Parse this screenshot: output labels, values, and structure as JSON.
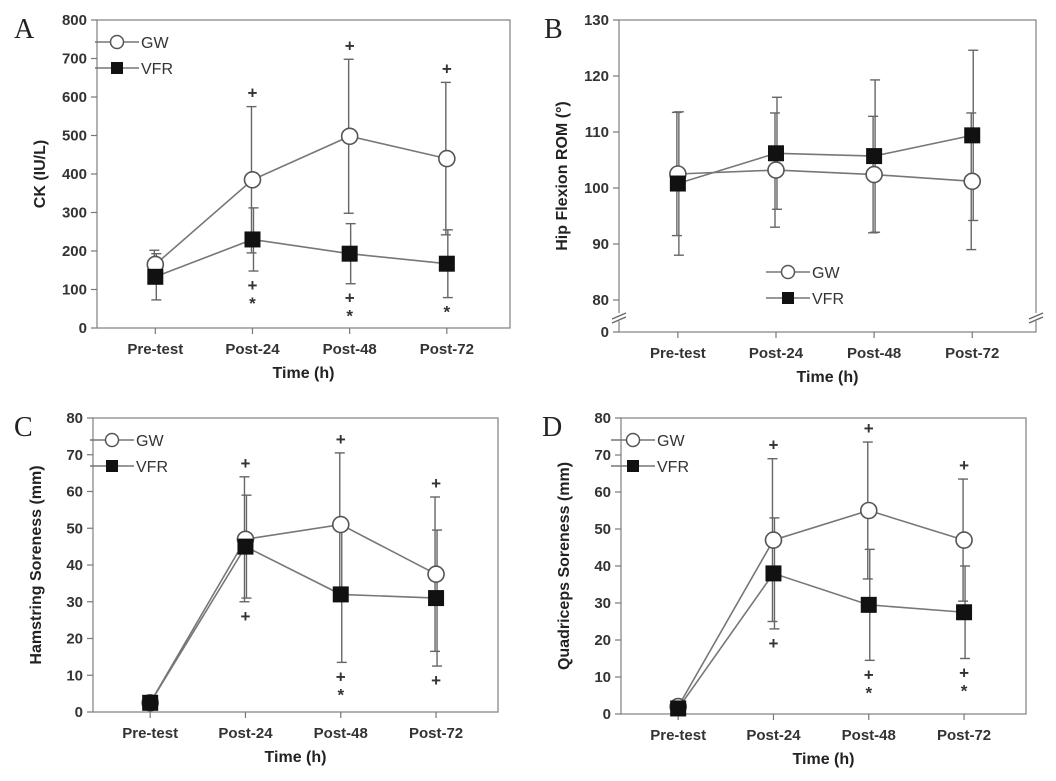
{
  "chart_data": [
    {
      "id": "A",
      "type": "line",
      "panel_label": "A",
      "title": "",
      "xlabel": "Time (h)",
      "ylabel": "CK (IU/L)",
      "categories": [
        "Pre-test",
        "Post-24",
        "Post-48",
        "Post-72"
      ],
      "ylim": [
        0,
        800
      ],
      "yticks": [
        0,
        100,
        200,
        300,
        400,
        500,
        600,
        700,
        800
      ],
      "axis_break": false,
      "legend": {
        "position": "top-left",
        "entries": [
          "GW",
          "VFR"
        ]
      },
      "series": [
        {
          "name": "GW",
          "marker": "open-circle",
          "values": [
            165,
            385,
            498,
            440
          ],
          "error": [
            37,
            190,
            200,
            198
          ],
          "error_lower": [
            200,
            200,
            200,
            200
          ]
        },
        {
          "name": "VFR",
          "marker": "filled-square",
          "values": [
            133,
            230,
            193,
            167
          ],
          "error": [
            60,
            82,
            78,
            88
          ]
        }
      ],
      "significance": [
        {
          "category": "Post-24",
          "symbols_above": [
            "+"
          ],
          "symbols_below": [
            "+",
            "*"
          ]
        },
        {
          "category": "Post-48",
          "symbols_above": [
            "+"
          ],
          "symbols_below": [
            "+",
            "*"
          ]
        },
        {
          "category": "Post-72",
          "symbols_above": [
            "+"
          ],
          "symbols_below": [
            "*"
          ]
        }
      ]
    },
    {
      "id": "B",
      "type": "line",
      "panel_label": "B",
      "title": "",
      "xlabel": "Time (h)",
      "ylabel": "Hip Flexion ROM (°)",
      "categories": [
        "Pre-test",
        "Post-24",
        "Post-48",
        "Post-72"
      ],
      "ylim": [
        80,
        130
      ],
      "yticks": [
        80,
        90,
        100,
        110,
        120,
        130
      ],
      "extra_tick": 0,
      "axis_break": true,
      "legend": {
        "position": "bottom-center",
        "entries": [
          "GW",
          "VFR"
        ]
      },
      "series": [
        {
          "name": "GW",
          "marker": "open-circle",
          "values": [
            102.5,
            103.2,
            102.4,
            101.2
          ],
          "error": [
            11.0,
            10.2,
            10.4,
            12.2
          ]
        },
        {
          "name": "VFR",
          "marker": "filled-square",
          "values": [
            100.8,
            106.2,
            105.7,
            109.4
          ],
          "error": [
            12.8,
            10.0,
            13.6,
            15.2
          ]
        }
      ],
      "significance": []
    },
    {
      "id": "C",
      "type": "line",
      "panel_label": "C",
      "title": "",
      "xlabel": "Time (h)",
      "ylabel": "Hamstring Soreness (mm)",
      "categories": [
        "Pre-test",
        "Post-24",
        "Post-48",
        "Post-72"
      ],
      "ylim": [
        0,
        80
      ],
      "yticks": [
        0,
        10,
        20,
        30,
        40,
        50,
        60,
        70,
        80
      ],
      "axis_break": false,
      "legend": {
        "position": "top-left",
        "entries": [
          "GW",
          "VFR"
        ]
      },
      "series": [
        {
          "name": "GW",
          "marker": "open-circle",
          "values": [
            2.5,
            47,
            51,
            37.5
          ],
          "error": [
            1,
            17,
            19.5,
            21
          ]
        },
        {
          "name": "VFR",
          "marker": "filled-square",
          "values": [
            2.5,
            45,
            32,
            31
          ],
          "error": [
            1,
            14,
            18.5,
            18.5
          ]
        }
      ],
      "significance": [
        {
          "category": "Post-24",
          "symbols_above": [
            "+"
          ],
          "symbols_below": [
            "+"
          ]
        },
        {
          "category": "Post-48",
          "symbols_above": [
            "+"
          ],
          "symbols_below": [
            "+",
            "*"
          ]
        },
        {
          "category": "Post-72",
          "symbols_above": [
            "+"
          ],
          "symbols_below": [
            "+"
          ]
        }
      ]
    },
    {
      "id": "D",
      "type": "line",
      "panel_label": "D",
      "title": "",
      "xlabel": "Time (h)",
      "ylabel": "Quadriceps Soreness (mm)",
      "categories": [
        "Pre-test",
        "Post-24",
        "Post-48",
        "Post-72"
      ],
      "ylim": [
        0,
        80
      ],
      "yticks": [
        0,
        10,
        20,
        30,
        40,
        50,
        60,
        70,
        80
      ],
      "axis_break": false,
      "legend": {
        "position": "top-left",
        "entries": [
          "GW",
          "VFR"
        ]
      },
      "series": [
        {
          "name": "GW",
          "marker": "open-circle",
          "values": [
            2,
            47,
            55,
            47
          ],
          "error": [
            1,
            22,
            18.5,
            16.5
          ]
        },
        {
          "name": "VFR",
          "marker": "filled-square",
          "values": [
            1.5,
            38,
            29.5,
            27.5
          ],
          "error": [
            1,
            15,
            15,
            12.5
          ]
        }
      ],
      "significance": [
        {
          "category": "Post-24",
          "symbols_above": [
            "+"
          ],
          "symbols_below": [
            "+"
          ]
        },
        {
          "category": "Post-48",
          "symbols_above": [
            "+"
          ],
          "symbols_below": [
            "+",
            "*"
          ]
        },
        {
          "category": "Post-72",
          "symbols_above": [
            "+"
          ],
          "symbols_below": [
            "+",
            "*"
          ]
        }
      ]
    }
  ]
}
